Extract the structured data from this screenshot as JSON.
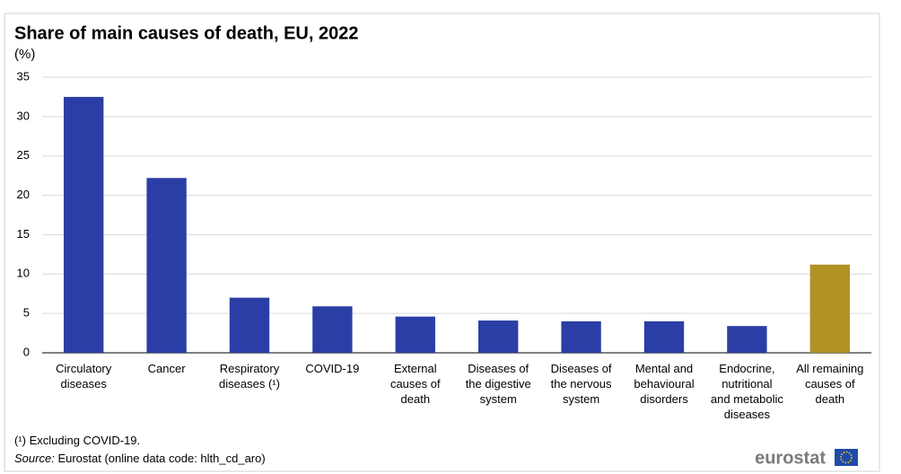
{
  "chart_data": {
    "type": "bar",
    "title": "Share of main causes of death, EU, 2022",
    "unit_label": "(%)",
    "categories": [
      "Circulatory\ndiseases",
      "Cancer",
      "Respiratory\ndiseases (¹)",
      "COVID-19",
      "External\ncauses of\ndeath",
      "Diseases of\nthe digestive\nsystem",
      "Diseases of\nthe nervous\nsystem",
      "Mental and\nbehavioural\ndisorders",
      "Endocrine,\nnutritional\nand metabolic\ndiseases",
      "All remaining\ncauses of\ndeath"
    ],
    "values": [
      32.5,
      22.2,
      7.0,
      5.9,
      4.6,
      4.1,
      4.0,
      4.0,
      3.4,
      11.2
    ],
    "colors": [
      "#2a3ea5",
      "#2a3ea5",
      "#2a3ea5",
      "#2a3ea5",
      "#2a3ea5",
      "#2a3ea5",
      "#2a3ea5",
      "#2a3ea5",
      "#2a3ea5",
      "#b09225"
    ],
    "ylim": [
      0,
      35
    ],
    "yticks": [
      0,
      5,
      10,
      15,
      20,
      25,
      30,
      35
    ],
    "grid": true,
    "footnote": "(¹) Excluding COVID-19.",
    "source_label": "Source:",
    "source": "Eurostat (online data code: hlth_cd_aro)",
    "logo_text": "eurostat"
  }
}
